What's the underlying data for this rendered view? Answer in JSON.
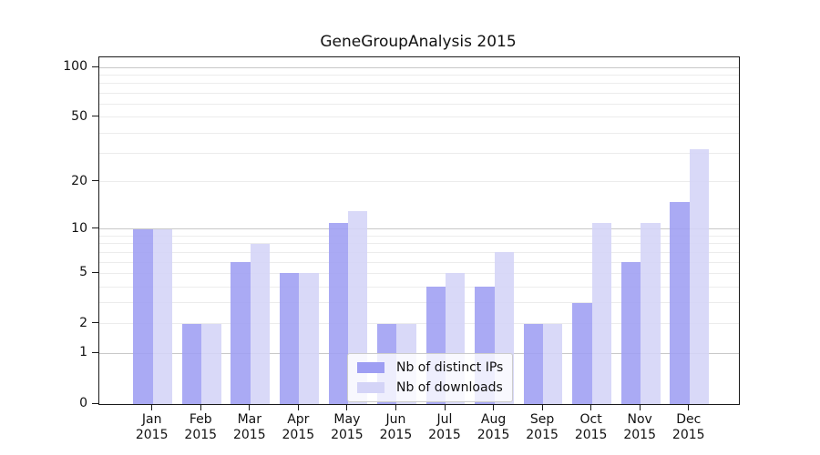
{
  "figure": {
    "background": "#ffffff",
    "text_color": "#111111",
    "spine_color": "#1a1a1a",
    "major_grid_color": "#c9c9c9",
    "minor_grid_color": "#ececec"
  },
  "chart_data": {
    "type": "bar",
    "title": "GeneGroupAnalysis 2015",
    "categories": [
      "Jan",
      "Feb",
      "Mar",
      "Apr",
      "May",
      "Jun",
      "Jul",
      "Aug",
      "Sep",
      "Oct",
      "Nov",
      "Dec"
    ],
    "category_year": "2015",
    "series": [
      {
        "name": "Nb of distinct IPs",
        "color": "#9e9ef3",
        "values": [
          10,
          2,
          6,
          5,
          11,
          2,
          4,
          4,
          2,
          3,
          6,
          15
        ]
      },
      {
        "name": "Nb of downloads",
        "color": "#d4d4f7",
        "values": [
          10,
          2,
          8,
          5,
          13,
          2,
          5,
          7,
          2,
          11,
          11,
          32
        ]
      }
    ],
    "y_axis": {
      "scale": "log1p",
      "ticks": [
        100,
        50,
        20,
        10,
        5,
        2,
        1,
        0
      ],
      "ylim": [
        0,
        115
      ],
      "major_gridlines": [
        1,
        10,
        100
      ],
      "minor_gridlines": [
        2,
        3,
        4,
        5,
        6,
        7,
        8,
        9,
        20,
        30,
        40,
        50,
        60,
        70,
        80,
        90
      ],
      "grid": true
    },
    "legend": {
      "position": "lower center"
    }
  }
}
